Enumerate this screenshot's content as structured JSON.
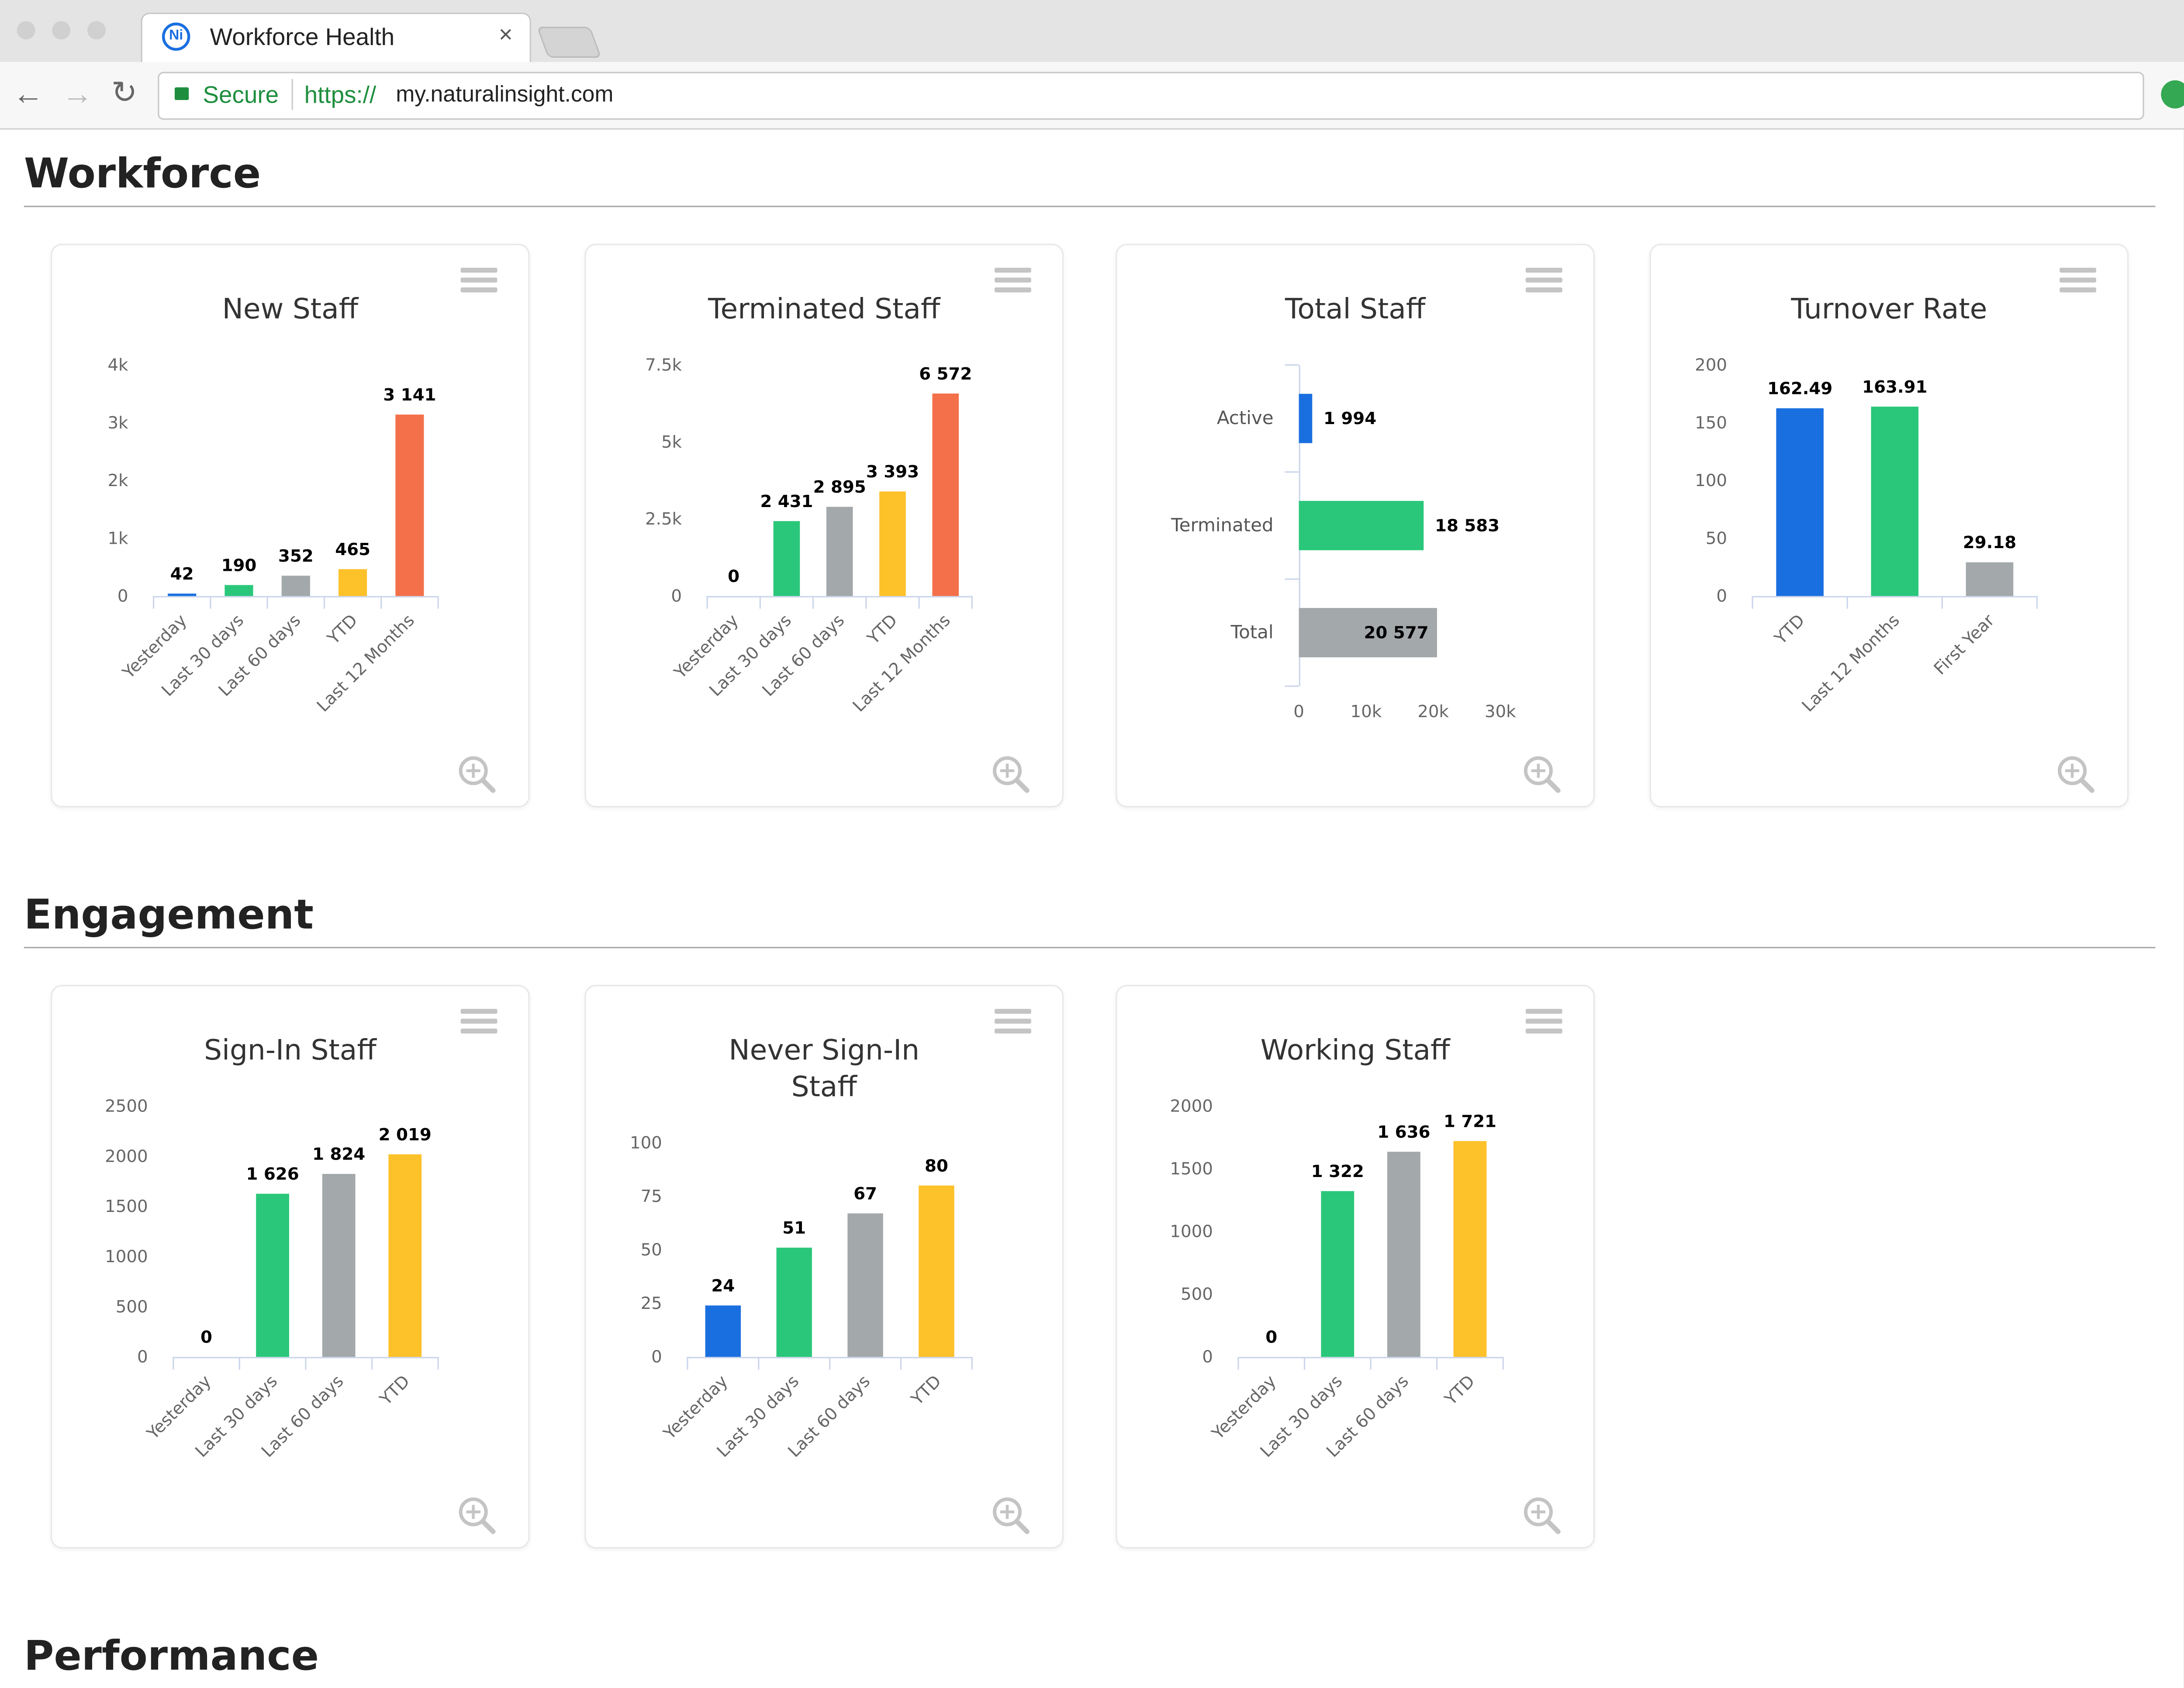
{
  "browser": {
    "favicon_text": "Ni",
    "tab_title": "Workforce Health",
    "secure_label": "Secure",
    "url_scheme": "https://",
    "url_host": "my.naturalinsight.com"
  },
  "sections": [
    {
      "title": "Workforce",
      "charts": [
        {
          "type": "bar",
          "title": "New Staff",
          "categories": [
            "Yesterday",
            "Last 30 days",
            "Last 60 days",
            "YTD",
            "Last 12 Months"
          ],
          "values": [
            42,
            190,
            352,
            465,
            3141
          ],
          "value_labels": [
            "42",
            "190",
            "352",
            "465",
            "3 141"
          ],
          "colors": [
            "#1a6fe0",
            "#2ac77a",
            "#a3a8ab",
            "#fdc12a",
            "#f4704a"
          ],
          "ylim": [
            0,
            4000
          ],
          "yticks": [
            0,
            {
              "value": 1000,
              "label": "1k"
            },
            {
              "value": 2000,
              "label": "2k"
            },
            {
              "value": 3000,
              "label": "3k"
            },
            {
              "value": 4000,
              "label": "4k"
            }
          ]
        },
        {
          "type": "bar",
          "title": "Terminated Staff",
          "categories": [
            "Yesterday",
            "Last 30 days",
            "Last 60 days",
            "YTD",
            "Last 12 Months"
          ],
          "values": [
            0,
            2431,
            2895,
            3393,
            6572
          ],
          "value_labels": [
            "0",
            "2 431",
            "2 895",
            "3 393",
            "6 572"
          ],
          "colors": [
            "#1a6fe0",
            "#2ac77a",
            "#a3a8ab",
            "#fdc12a",
            "#f4704a"
          ],
          "ylim": [
            0,
            7500
          ],
          "yticks": [
            0,
            {
              "value": 2500,
              "label": "2.5k"
            },
            {
              "value": 5000,
              "label": "5k"
            },
            {
              "value": 7500,
              "label": "7.5k"
            }
          ]
        },
        {
          "type": "hbar",
          "title": "Total Staff",
          "categories": [
            "Active",
            "Terminated",
            "Total"
          ],
          "values": [
            1994,
            18583,
            20577
          ],
          "value_labels": [
            "1 994",
            "18 583",
            "20 577"
          ],
          "colors": [
            "#1a6fe0",
            "#2ac77a",
            "#a3a8ab"
          ],
          "xlim": [
            0,
            30000
          ],
          "xticks": [
            0,
            {
              "value": 10000,
              "label": "10k"
            },
            {
              "value": 20000,
              "label": "20k"
            },
            {
              "value": 30000,
              "label": "30k"
            }
          ]
        },
        {
          "type": "bar",
          "title": "Turnover Rate",
          "categories": [
            "YTD",
            "Last 12 Months",
            "First Year"
          ],
          "values": [
            162.49,
            163.91,
            29.18
          ],
          "colors": [
            "#1a6fe0",
            "#2ac77a",
            "#a3a8ab"
          ],
          "ylim": [
            0,
            200
          ],
          "yticks": [
            0,
            50,
            100,
            150,
            200
          ]
        }
      ]
    },
    {
      "title": "Engagement",
      "charts": [
        {
          "type": "bar",
          "title": "Sign-In Staff",
          "categories": [
            "Yesterday",
            "Last 30 days",
            "Last 60 days",
            "YTD"
          ],
          "values": [
            0,
            1626,
            1824,
            2019
          ],
          "value_labels": [
            "0",
            "1 626",
            "1 824",
            "2 019"
          ],
          "colors": [
            "#1a6fe0",
            "#2ac77a",
            "#a3a8ab",
            "#fdc12a"
          ],
          "ylim": [
            0,
            2500
          ],
          "yticks": [
            0,
            500,
            1000,
            1500,
            2000,
            2500
          ]
        },
        {
          "type": "bar",
          "title": "Never Sign-In Staff",
          "categories": [
            "Yesterday",
            "Last 30 days",
            "Last 60 days",
            "YTD"
          ],
          "values": [
            24,
            51,
            67,
            80
          ],
          "colors": [
            "#1a6fe0",
            "#2ac77a",
            "#a3a8ab",
            "#fdc12a"
          ],
          "ylim": [
            0,
            100
          ],
          "yticks": [
            0,
            25,
            50,
            75,
            100
          ]
        },
        {
          "type": "bar",
          "title": "Working Staff",
          "categories": [
            "Yesterday",
            "Last 30 days",
            "Last 60 days",
            "YTD"
          ],
          "values": [
            0,
            1322,
            1636,
            1721
          ],
          "value_labels": [
            "0",
            "1 322",
            "1 636",
            "1 721"
          ],
          "colors": [
            "#1a6fe0",
            "#2ac77a",
            "#a3a8ab",
            "#fdc12a"
          ],
          "ylim": [
            0,
            2000
          ],
          "yticks": [
            0,
            500,
            1000,
            1500,
            2000
          ]
        }
      ]
    },
    {
      "title": "Performance"
    }
  ]
}
